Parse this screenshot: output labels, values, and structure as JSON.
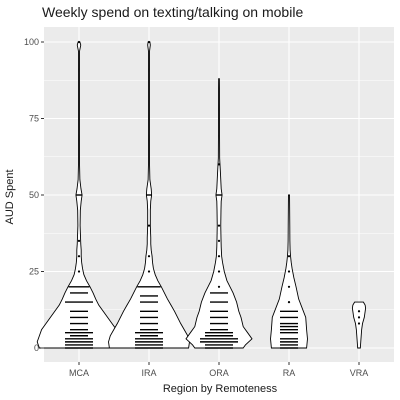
{
  "chart_data": {
    "type": "violin",
    "title": "Weekly spend on texting/talking on mobile",
    "xlabel": "Region by Remoteness",
    "ylabel": "AUD Spent",
    "ylim": [
      0,
      100
    ],
    "yticks": [
      0,
      25,
      50,
      75,
      100
    ],
    "categories": [
      "MCA",
      "IRA",
      "ORA",
      "RA",
      "VRA"
    ],
    "grid": true,
    "background": "#ebebeb",
    "gridline_color": "#ffffff",
    "violins": [
      {
        "category": "MCA",
        "min": 0,
        "max": 100,
        "density": [
          [
            0,
            0.9
          ],
          [
            2,
            0.95
          ],
          [
            4,
            0.9
          ],
          [
            6,
            0.85
          ],
          [
            8,
            0.75
          ],
          [
            10,
            0.65
          ],
          [
            12,
            0.55
          ],
          [
            14,
            0.45
          ],
          [
            16,
            0.38
          ],
          [
            18,
            0.32
          ],
          [
            20,
            0.25
          ],
          [
            22,
            0.17
          ],
          [
            24,
            0.11
          ],
          [
            26,
            0.08
          ],
          [
            28,
            0.06
          ],
          [
            30,
            0.05
          ],
          [
            32,
            0.05
          ],
          [
            34,
            0.04
          ],
          [
            36,
            0.035
          ],
          [
            38,
            0.03
          ],
          [
            40,
            0.025
          ],
          [
            45,
            0.03
          ],
          [
            48,
            0.05
          ],
          [
            50,
            0.07
          ],
          [
            52,
            0.045
          ],
          [
            55,
            0.02
          ],
          [
            60,
            0.012
          ],
          [
            70,
            0.01
          ],
          [
            80,
            0.01
          ],
          [
            90,
            0.01
          ],
          [
            97,
            0.012
          ],
          [
            99,
            0.04
          ],
          [
            100,
            0.02
          ]
        ],
        "points": [
          0,
          0,
          1,
          1,
          2,
          2,
          3,
          3,
          4,
          5,
          5,
          6,
          8,
          10,
          12,
          15,
          15,
          18,
          20,
          20,
          25,
          30,
          35,
          50,
          50,
          100
        ]
      },
      {
        "category": "IRA",
        "min": 0,
        "max": 100,
        "density": [
          [
            0,
            0.9
          ],
          [
            2,
            0.92
          ],
          [
            4,
            0.88
          ],
          [
            6,
            0.8
          ],
          [
            8,
            0.72
          ],
          [
            10,
            0.65
          ],
          [
            12,
            0.58
          ],
          [
            14,
            0.5
          ],
          [
            16,
            0.42
          ],
          [
            18,
            0.35
          ],
          [
            20,
            0.28
          ],
          [
            22,
            0.2
          ],
          [
            24,
            0.14
          ],
          [
            26,
            0.1
          ],
          [
            28,
            0.08
          ],
          [
            30,
            0.07
          ],
          [
            32,
            0.05
          ],
          [
            34,
            0.04
          ],
          [
            36,
            0.04
          ],
          [
            38,
            0.035
          ],
          [
            40,
            0.03
          ],
          [
            45,
            0.03
          ],
          [
            48,
            0.04
          ],
          [
            50,
            0.06
          ],
          [
            52,
            0.05
          ],
          [
            55,
            0.02
          ],
          [
            60,
            0.012
          ],
          [
            70,
            0.01
          ],
          [
            80,
            0.01
          ],
          [
            90,
            0.01
          ],
          [
            97,
            0.012
          ],
          [
            99,
            0.03
          ],
          [
            100,
            0.02
          ]
        ],
        "points": [
          0,
          0,
          1,
          1,
          2,
          2,
          3,
          3,
          4,
          5,
          5,
          6,
          8,
          10,
          12,
          15,
          17,
          20,
          20,
          25,
          30,
          40,
          50,
          50,
          100
        ]
      },
      {
        "category": "ORA",
        "min": 0,
        "max": 88,
        "density": [
          [
            0,
            0.55
          ],
          [
            1,
            0.6
          ],
          [
            3,
            0.75
          ],
          [
            5,
            0.65
          ],
          [
            7,
            0.55
          ],
          [
            10,
            0.5
          ],
          [
            12,
            0.45
          ],
          [
            15,
            0.4
          ],
          [
            18,
            0.32
          ],
          [
            20,
            0.25
          ],
          [
            22,
            0.18
          ],
          [
            25,
            0.12
          ],
          [
            28,
            0.08
          ],
          [
            30,
            0.06
          ],
          [
            33,
            0.05
          ],
          [
            36,
            0.045
          ],
          [
            40,
            0.04
          ],
          [
            45,
            0.045
          ],
          [
            48,
            0.05
          ],
          [
            50,
            0.07
          ],
          [
            52,
            0.05
          ],
          [
            55,
            0.04
          ],
          [
            58,
            0.03
          ],
          [
            62,
            0.015
          ],
          [
            70,
            0.012
          ],
          [
            80,
            0.01
          ],
          [
            85,
            0.01
          ],
          [
            88,
            0.008
          ]
        ],
        "points": [
          0,
          0,
          1,
          1,
          2,
          2,
          2,
          3,
          3,
          3,
          4,
          4,
          5,
          5,
          6,
          8,
          10,
          12,
          15,
          18,
          20,
          25,
          30,
          35,
          40,
          50,
          50,
          60
        ]
      },
      {
        "category": "RA",
        "min": 0,
        "max": 50,
        "density": [
          [
            0,
            0.4
          ],
          [
            3,
            0.42
          ],
          [
            6,
            0.4
          ],
          [
            10,
            0.38
          ],
          [
            13,
            0.3
          ],
          [
            16,
            0.22
          ],
          [
            20,
            0.16
          ],
          [
            23,
            0.11
          ],
          [
            26,
            0.07
          ],
          [
            28,
            0.05
          ],
          [
            30,
            0.035
          ],
          [
            32,
            0.025
          ],
          [
            35,
            0.02
          ],
          [
            40,
            0.018
          ],
          [
            45,
            0.015
          ],
          [
            50,
            0.012
          ]
        ],
        "points": [
          0,
          1,
          2,
          3,
          5,
          6,
          7,
          8,
          10,
          12,
          15,
          20,
          25,
          30
        ]
      },
      {
        "category": "VRA",
        "min": 0,
        "max": 15,
        "density": [
          [
            0,
            0.03
          ],
          [
            2,
            0.04
          ],
          [
            4,
            0.05
          ],
          [
            6,
            0.06
          ],
          [
            8,
            0.08
          ],
          [
            10,
            0.12
          ],
          [
            12,
            0.14
          ],
          [
            13,
            0.15
          ],
          [
            14,
            0.14
          ],
          [
            15,
            0.1
          ]
        ],
        "points": [
          8,
          10,
          12
        ]
      }
    ]
  }
}
